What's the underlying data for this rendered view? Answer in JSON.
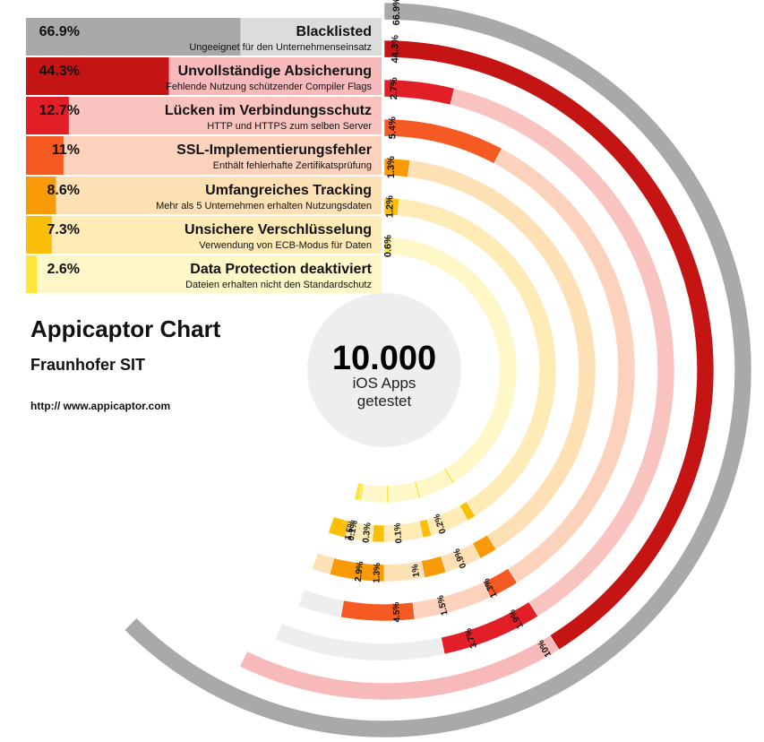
{
  "chart_data": {
    "type": "radial-bar",
    "title": "Appicaptor Chart",
    "subtitle": "Fraunhofer SIT",
    "url": "http:// www.appicaptor.com",
    "center": {
      "value": "10.000",
      "line1": "iOS Apps",
      "line2": "getestet"
    },
    "categories": [
      {
        "pct_label": "66.9%",
        "value": 66.9,
        "title": "Blacklisted",
        "desc": "Ungeeignet für den Unternehmenseinsatz",
        "color": "#a9a9a9",
        "light": "#dcdcdc",
        "ring_label": "66.9%"
      },
      {
        "pct_label": "44.3%",
        "value": 44.3,
        "title": "Unvollständige Absicherung",
        "desc": "Fehlende Nutzung schützender Compiler Flags",
        "color": "#c41414",
        "light": "#f7b9b9",
        "ring_label": "44.3%"
      },
      {
        "pct_label": "12.7%",
        "value": 12.7,
        "title": "Lücken im Verbindungsschutz",
        "desc": "HTTP und HTTPS zum selben Server",
        "color": "#e21f26",
        "light": "#f9c4c0",
        "ring_label": "2.7%"
      },
      {
        "pct_label": "11%",
        "value": 11,
        "title": "SSL-Implementierungsfehler",
        "desc": "Enthält fehlerhafte Zertifikatsprüfung",
        "color": "#f55a23",
        "light": "#fdd2bc",
        "ring_label": "5.4%"
      },
      {
        "pct_label": "8.6%",
        "value": 8.6,
        "title": "Umfangreiches Tracking",
        "desc": "Mehr als 5 Unternehmen erhalten Nutzungsdaten",
        "color": "#f99b08",
        "light": "#fde0b3",
        "ring_label": "1.3%"
      },
      {
        "pct_label": "7.3%",
        "value": 7.3,
        "title": "Unsichere Verschlüsselung",
        "desc": "Verwendung von ECB-Modus für Daten",
        "color": "#fbbf0a",
        "light": "#feebb5",
        "ring_label": "1.2%"
      },
      {
        "pct_label": "2.6%",
        "value": 2.6,
        "title": "Data Protection deaktiviert",
        "desc": "Dateien erhalten nicht den Standardschutz",
        "color": "#fde53a",
        "light": "#fef7c8",
        "ring_label": "0.6%"
      }
    ],
    "bottom_labels": [
      {
        "ring": 1,
        "text": "10%"
      },
      {
        "ring": 2,
        "text": "1.9%"
      },
      {
        "ring": 3,
        "text": "1.3%"
      },
      {
        "ring": 4,
        "text": "0.9%"
      },
      {
        "ring": 5,
        "text": "0.2%"
      },
      {
        "ring": 2,
        "text": "3.7%"
      },
      {
        "ring": 3,
        "text": "1.5%"
      },
      {
        "ring": 4,
        "text": "1%"
      },
      {
        "ring": 5,
        "text": "0.1%"
      },
      {
        "ring": 3,
        "text": "4.5%"
      },
      {
        "ring": 4,
        "text": "1.3%"
      },
      {
        "ring": 5,
        "text": "0.3%"
      },
      {
        "ring": 4,
        "text": "2.9%"
      },
      {
        "ring": 5,
        "text": "0.1%"
      },
      {
        "ring": 5,
        "text": "1.5%"
      }
    ]
  }
}
